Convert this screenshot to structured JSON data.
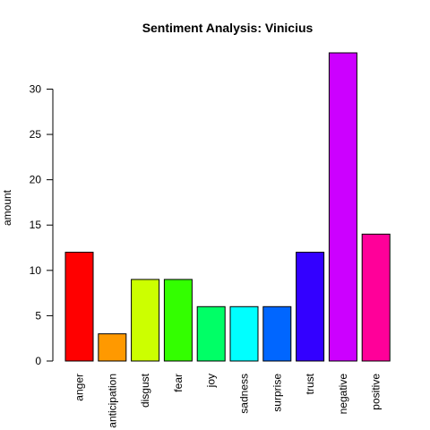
{
  "chart_data": {
    "type": "bar",
    "title": "Sentiment Analysis: Vinicius",
    "xlabel": "",
    "ylabel": "amount",
    "categories": [
      "anger",
      "anticipation",
      "disgust",
      "fear",
      "joy",
      "sadness",
      "surprise",
      "trust",
      "negative",
      "positive"
    ],
    "values": [
      12,
      3,
      9,
      9,
      6,
      6,
      6,
      12,
      34,
      14
    ],
    "colors": [
      "#FF0000",
      "#FF9900",
      "#CCFF00",
      "#33FF00",
      "#00FF66",
      "#00FFFF",
      "#0066FF",
      "#3300FF",
      "#CC00FF",
      "#FF0099"
    ],
    "yticks": [
      0,
      5,
      10,
      15,
      20,
      25,
      30
    ],
    "ylim": [
      0,
      34
    ],
    "grid": false,
    "legend": "none"
  }
}
